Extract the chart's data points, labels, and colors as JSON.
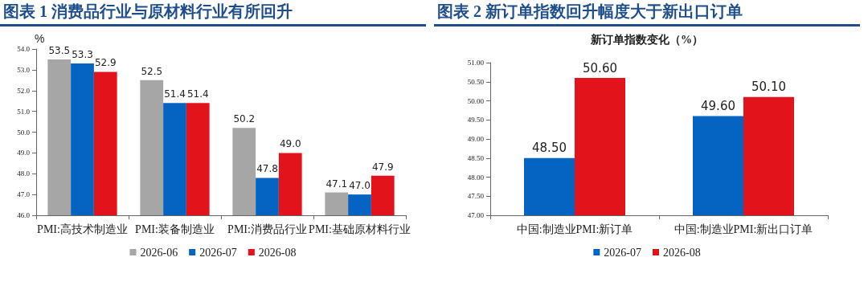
{
  "chart_data": [
    {
      "type": "bar",
      "title": "图表 1 消费品行业与原材料行业有所回升",
      "ylabel": "%",
      "categories": [
        "PMI:高技术制造业",
        "PMI:装备制造业",
        "PMI:消费品行业",
        "PMI:基础原材料行业"
      ],
      "series": [
        {
          "name": "2026-06",
          "color": "#a6a6a6",
          "values": [
            53.5,
            52.5,
            50.2,
            47.1
          ],
          "value_labels": [
            "53.5",
            "52.5",
            "50.2",
            "47.1"
          ]
        },
        {
          "name": "2026-07",
          "color": "#0563c1",
          "values": [
            53.3,
            51.4,
            47.8,
            47.0
          ],
          "value_labels": [
            "53.3",
            "51.4",
            "47.8",
            "47.0"
          ]
        },
        {
          "name": "2026-08",
          "color": "#e3131b",
          "values": [
            52.9,
            51.4,
            49.0,
            47.9
          ],
          "value_labels": [
            "52.9",
            "51.4",
            "49.0",
            "47.9"
          ]
        }
      ],
      "ylim": [
        46,
        54
      ],
      "yticks": [
        {
          "value": 46,
          "label": "46.0"
        },
        {
          "value": 47,
          "label": "47.0"
        },
        {
          "value": 48,
          "label": "48.0"
        },
        {
          "value": 49,
          "label": "49.0"
        },
        {
          "value": 50,
          "label": "50.0"
        },
        {
          "value": 51,
          "label": "51.0"
        },
        {
          "value": 52,
          "label": "52.0"
        },
        {
          "value": 53,
          "label": "53.0"
        },
        {
          "value": 54,
          "label": "54.0"
        }
      ],
      "grid": false,
      "legend": "bottom"
    },
    {
      "type": "bar",
      "title": "图表 2 新订单指数回升幅度大于新出口订单",
      "subtitle": "新订单指数变化（%）",
      "categories": [
        "中国:制造业PMI:新订单",
        "中国:制造业PMI:新出口订单"
      ],
      "series": [
        {
          "name": "2026-07",
          "color": "#0563c1",
          "values": [
            48.5,
            49.6
          ],
          "value_labels": [
            "48.50",
            "49.60"
          ]
        },
        {
          "name": "2026-08",
          "color": "#e3131b",
          "values": [
            50.6,
            50.1
          ],
          "value_labels": [
            "50.60",
            "50.10"
          ]
        }
      ],
      "ylim": [
        47,
        51
      ],
      "yticks": [
        {
          "value": 47,
          "label": "47.00"
        },
        {
          "value": 47.5,
          "label": "47.50"
        },
        {
          "value": 48,
          "label": "48.00"
        },
        {
          "value": 48.5,
          "label": "48.50"
        },
        {
          "value": 49,
          "label": "49.00"
        },
        {
          "value": 49.5,
          "label": "49.50"
        },
        {
          "value": 50,
          "label": "50.00"
        },
        {
          "value": 50.5,
          "label": "50.50"
        },
        {
          "value": 51,
          "label": "51.00"
        }
      ],
      "grid": false,
      "legend": "bottom"
    }
  ]
}
